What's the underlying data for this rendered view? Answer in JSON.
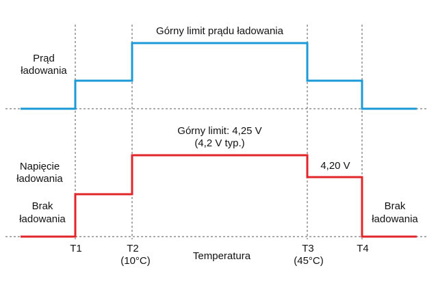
{
  "colors": {
    "current": "#1a9ad6",
    "voltage": "#e0262a",
    "guide": "#555555",
    "text": "#111111"
  },
  "current_panel": {
    "label_line1": "Prąd",
    "label_line2": "ładowania",
    "upper_limit_label": "Górny limit prądu ładowania"
  },
  "voltage_panel": {
    "label_line1": "Napięcie",
    "label_line2": "ładowania",
    "upper_limit_line1": "Górny limit: 4,25 V",
    "upper_limit_line2": "(4,2 V typ.)",
    "reduced_voltage_label": "4,20 V",
    "no_charge_left_line1": "Brak",
    "no_charge_left_line2": "ładowania",
    "no_charge_right_line1": "Brak",
    "no_charge_right_line2": "ładowania"
  },
  "axis": {
    "title": "Temperatura",
    "thresholds": [
      {
        "name": "T1",
        "note": ""
      },
      {
        "name": "T2",
        "note": "(10°C)"
      },
      {
        "name": "T3",
        "note": "(45°C)"
      },
      {
        "name": "T4",
        "note": ""
      }
    ]
  }
}
